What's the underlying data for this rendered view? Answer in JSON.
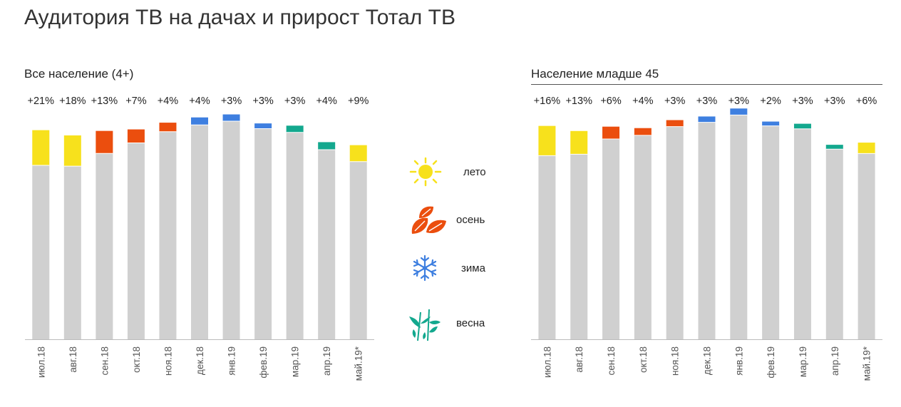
{
  "title": "Аудитория ТВ на дачах и прирост Тотал ТВ",
  "colors": {
    "base": "#d0d0d0",
    "leto": "#f7e11c",
    "osen": "#eb4e0e",
    "zima": "#3e7fe0",
    "vesna": "#13a88e",
    "axis": "#bbbbbb",
    "text": "#222222",
    "tick": "#555555"
  },
  "legend": [
    {
      "label": "лето",
      "icon": "sun-icon",
      "season": "leto"
    },
    {
      "label": "осень",
      "icon": "autumn-leaves-icon",
      "season": "osen"
    },
    {
      "label": "зима",
      "icon": "snowflake-icon",
      "season": "zima"
    },
    {
      "label": "весна",
      "icon": "spring-sprout-icon",
      "season": "vesna"
    }
  ],
  "chart_data": [
    {
      "type": "bar",
      "stacked": true,
      "title": "Все население (4+)",
      "categories": [
        "июл.18",
        "авг.18",
        "сен.18",
        "окт.18",
        "ноя.18",
        "дек.18",
        "янв.19",
        "фев.19",
        "мар.19",
        "апр.19",
        "май.19*"
      ],
      "growth_labels": [
        "+21%",
        "+18%",
        "+13%",
        "+7%",
        "+4%",
        "+4%",
        "+3%",
        "+3%",
        "+3%",
        "+4%",
        "+9%"
      ],
      "bar_seasons": [
        "leto",
        "leto",
        "osen",
        "osen",
        "osen",
        "zima",
        "zima",
        "zima",
        "vesna",
        "vesna",
        "leto"
      ],
      "series": [
        {
          "values": [
            232,
            231,
            248,
            262,
            277,
            286,
            291,
            281,
            276,
            253,
            237
          ]
        },
        {
          "values": [
            47,
            41,
            30,
            18,
            12,
            10,
            9,
            7,
            9,
            10,
            22
          ]
        }
      ],
      "ylim": [
        0,
        310
      ],
      "grid": false,
      "legend": "right"
    },
    {
      "type": "bar",
      "stacked": true,
      "title": "Население младше 45",
      "categories": [
        "июл.18",
        "авг.18",
        "сен.18",
        "окт.18",
        "ноя.18",
        "дек.18",
        "янв.19",
        "фев.19",
        "мар.19",
        "апр.19",
        "май.19*"
      ],
      "growth_labels": [
        "+16%",
        "+13%",
        "+6%",
        "+4%",
        "+3%",
        "+3%",
        "+3%",
        "+2%",
        "+3%",
        "+3%",
        "+6%"
      ],
      "bar_seasons": [
        "leto",
        "leto",
        "osen",
        "osen",
        "osen",
        "zima",
        "zima",
        "zima",
        "vesna",
        "vesna",
        "leto"
      ],
      "series": [
        {
          "values": [
            253,
            255,
            276,
            281,
            293,
            299,
            309,
            294,
            290,
            262,
            256
          ]
        },
        {
          "values": [
            41,
            32,
            17,
            10,
            9,
            8,
            9,
            6,
            7,
            6,
            15
          ]
        }
      ],
      "ylim": [
        0,
        330
      ],
      "grid": false,
      "legend": "none"
    }
  ]
}
